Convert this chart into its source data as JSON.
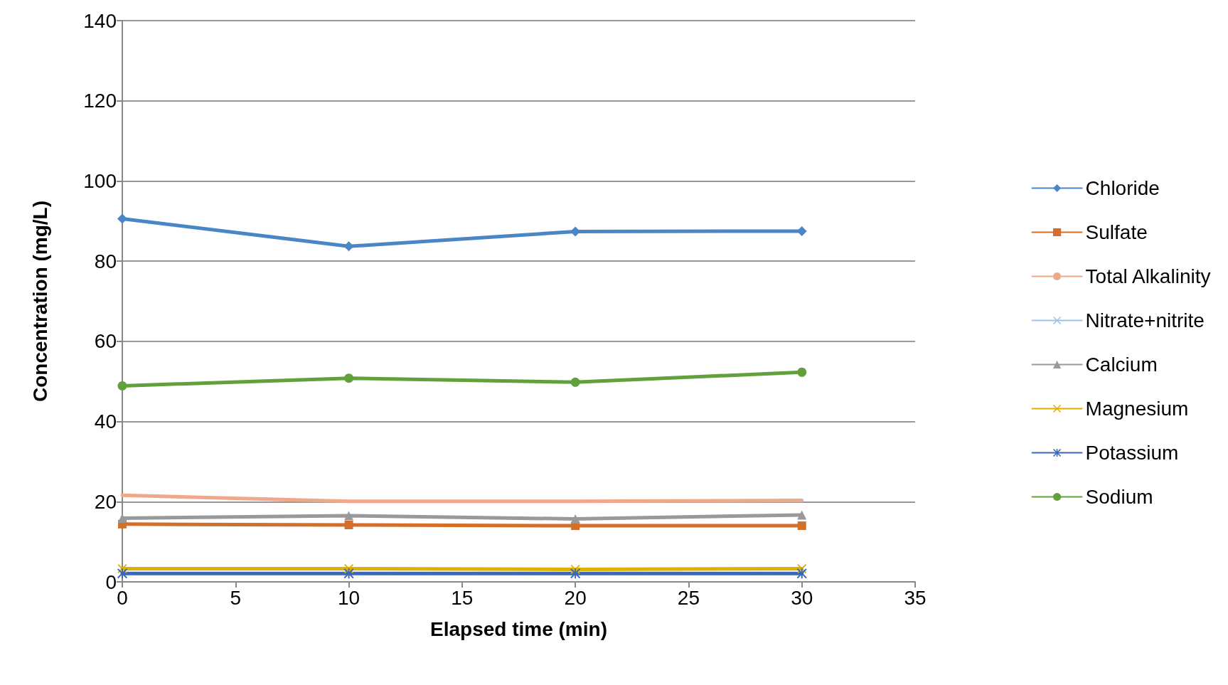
{
  "chart_data": {
    "type": "line",
    "xlabel": "Elapsed time (min)",
    "ylabel": "Concentration (mg/L)",
    "x": [
      0,
      10,
      20,
      30
    ],
    "xlim": [
      0,
      35
    ],
    "xticks": [
      0,
      5,
      10,
      15,
      20,
      25,
      30,
      35
    ],
    "ylim": [
      0,
      140
    ],
    "yticks": [
      0,
      20,
      40,
      60,
      80,
      100,
      120,
      140
    ],
    "grid": "y",
    "legend": "right",
    "line_style": "solid",
    "series": [
      {
        "name": "Chloride",
        "color": "#4a86c5",
        "marker": "diamond",
        "values": [
          90.6,
          83.7,
          87.4,
          87.5
        ]
      },
      {
        "name": "Sulfate",
        "color": "#d46f2a",
        "marker": "square",
        "values": [
          14.4,
          14.2,
          14.0,
          14.0
        ]
      },
      {
        "name": "Total Alkalinity",
        "color": "#f0a88a",
        "marker": "none",
        "values": [
          21.6,
          20.1,
          20.1,
          20.3
        ]
      },
      {
        "name": "Nitrate+nitrite",
        "color": "#9dc3e6",
        "marker": "cross",
        "values": [
          null,
          null,
          null,
          null
        ]
      },
      {
        "name": "Calcium",
        "color": "#999999",
        "marker": "triangle",
        "values": [
          15.9,
          16.5,
          15.7,
          16.7
        ]
      },
      {
        "name": "Magnesium",
        "color": "#e0b000",
        "marker": "cross",
        "values": [
          3.3,
          3.3,
          3.1,
          3.3
        ]
      },
      {
        "name": "Potassium",
        "color": "#3c67b4",
        "marker": "star",
        "values": [
          2.1,
          2.1,
          2.1,
          2.1
        ]
      },
      {
        "name": "Sodium",
        "color": "#62a03c",
        "marker": "circle",
        "values": [
          48.9,
          50.8,
          49.8,
          52.3
        ]
      }
    ]
  }
}
